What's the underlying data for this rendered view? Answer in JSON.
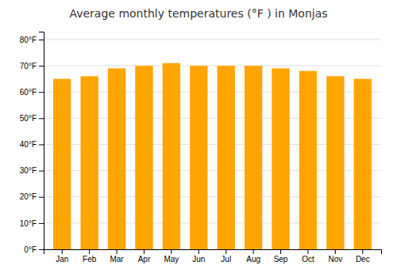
{
  "chart_data": {
    "type": "bar",
    "title": "Average monthly temperatures (°F ) in Monjas",
    "categories": [
      "Jan",
      "Feb",
      "Mar",
      "Apr",
      "May",
      "Jun",
      "Jul",
      "Aug",
      "Sep",
      "Oct",
      "Nov",
      "Dec"
    ],
    "values": [
      65,
      66,
      69,
      70,
      71,
      70,
      70,
      70,
      69,
      68,
      66,
      65
    ],
    "color": "#FFA500",
    "ylim": [
      0,
      83
    ],
    "yticks": [
      {
        "value": 0,
        "label": "0°F"
      },
      {
        "value": 10,
        "label": "10°F"
      },
      {
        "value": 20,
        "label": "20°F"
      },
      {
        "value": 30,
        "label": "30°F"
      },
      {
        "value": 40,
        "label": "40°F"
      },
      {
        "value": 50,
        "label": "50°F"
      },
      {
        "value": 60,
        "label": "60°F"
      },
      {
        "value": 70,
        "label": "70°F"
      },
      {
        "value": 80,
        "label": "80°F"
      }
    ],
    "grid": true
  }
}
